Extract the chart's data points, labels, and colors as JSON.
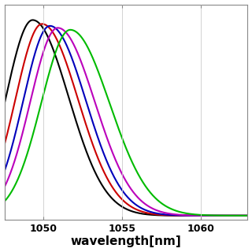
{
  "title": "",
  "xlabel": "wavelength[nm]",
  "ylabel": "",
  "xlim": [
    1047.5,
    1063
  ],
  "ylim": [
    -0.02,
    1.08
  ],
  "xticks": [
    1050,
    1055,
    1060
  ],
  "grid": true,
  "background_color": "#ffffff",
  "curves": [
    {
      "color": "#000000",
      "peak": 1049.3,
      "sigma": 1.7,
      "amplitude": 1.0
    },
    {
      "color": "#cc0000",
      "peak": 1049.9,
      "sigma": 1.7,
      "amplitude": 0.98
    },
    {
      "color": "#0000bb",
      "peak": 1050.4,
      "sigma": 1.7,
      "amplitude": 0.97
    },
    {
      "color": "#bb00bb",
      "peak": 1050.9,
      "sigma": 1.75,
      "amplitude": 0.96
    },
    {
      "color": "#00bb00",
      "peak": 1051.7,
      "sigma": 1.85,
      "amplitude": 0.95
    }
  ],
  "figsize": [
    3.2,
    3.2
  ],
  "dpi": 100,
  "xlabel_fontsize": 11,
  "xlabel_fontweight": "bold",
  "tick_fontsize": 9,
  "tick_fontweight": "bold",
  "linewidth": 1.5,
  "grid_color": "#cccccc",
  "grid_linewidth": 0.6
}
